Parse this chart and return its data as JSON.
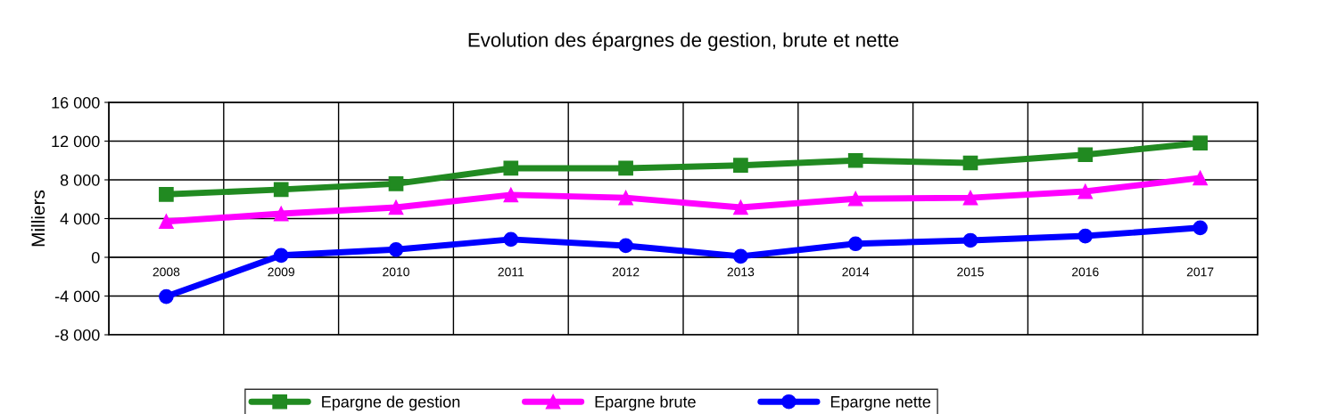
{
  "chart_data": {
    "type": "line",
    "title": "Evolution des épargnes de gestion, brute et nette",
    "ylabel": "Milliers",
    "categories": [
      "2008",
      "2009",
      "2010",
      "2011",
      "2012",
      "2013",
      "2014",
      "2015",
      "2016",
      "2017"
    ],
    "series": [
      {
        "name": "Epargne de gestion",
        "color": "#218a21",
        "marker": "square",
        "values": [
          6500,
          7000,
          7600,
          9200,
          9200,
          9500,
          10000,
          9750,
          10600,
          11800
        ]
      },
      {
        "name": "Epargne brute",
        "color": "#ff00ff",
        "marker": "triangle",
        "values": [
          3700,
          4500,
          5150,
          6450,
          6150,
          5150,
          6050,
          6150,
          6800,
          8200
        ]
      },
      {
        "name": "Epargne nette",
        "color": "#0000ff",
        "marker": "circle",
        "values": [
          -4050,
          200,
          800,
          1850,
          1200,
          100,
          1400,
          1750,
          2200,
          3050
        ]
      }
    ],
    "ylim": [
      -8000,
      16000
    ],
    "yticks": [
      {
        "value": -8000,
        "label": "-8 000"
      },
      {
        "value": -4000,
        "label": "-4 000"
      },
      {
        "value": 0,
        "label": "0"
      },
      {
        "value": 4000,
        "label": "4 000"
      },
      {
        "value": 8000,
        "label": "8 000"
      },
      {
        "value": 12000,
        "label": "12 000"
      },
      {
        "value": 16000,
        "label": "16 000"
      }
    ],
    "grid": true,
    "legend": "bottom",
    "line_style": "solid"
  }
}
